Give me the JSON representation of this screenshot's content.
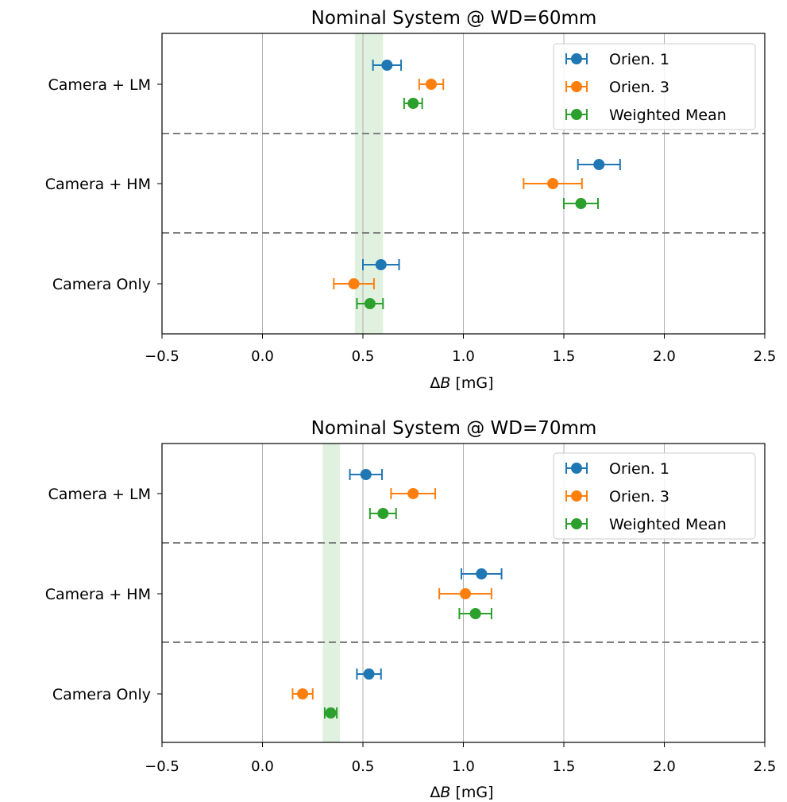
{
  "colors": {
    "orien1": "#1f77b4",
    "orien3": "#ff7f0e",
    "weighted_mean": "#2ca02c",
    "band": "#2ca02c",
    "grid": "#b0b0b0",
    "separator": "#808080"
  },
  "chart_data": [
    {
      "type": "scatter",
      "title": "Nominal System @ WD=60mm",
      "xlabel_delta": "Δ",
      "xlabel_var": "B",
      "xlabel_unit": " [mG]",
      "ylabel": "",
      "xlim": [
        -0.5,
        2.5
      ],
      "xticks": [
        -0.5,
        0.0,
        0.5,
        1.0,
        1.5,
        2.0,
        2.5
      ],
      "xtick_labels": [
        "−0.5",
        "0.0",
        "0.5",
        "1.0",
        "1.5",
        "2.0",
        "2.5"
      ],
      "grid": "vertical",
      "legend_position": "top-right",
      "categories": [
        "Camera + LM",
        "Camera + HM",
        "Camera Only"
      ],
      "band": [
        0.46,
        0.6
      ],
      "series": [
        {
          "name": "Orien. 1",
          "color": "orien1",
          "values": [
            0.62,
            1.675,
            0.59
          ],
          "errors": [
            0.07,
            0.105,
            0.09
          ]
        },
        {
          "name": "Orien. 3",
          "color": "orien3",
          "values": [
            0.84,
            1.445,
            0.455
          ],
          "errors": [
            0.06,
            0.145,
            0.1
          ]
        },
        {
          "name": "Weighted Mean",
          "color": "weighted_mean",
          "values": [
            0.75,
            1.585,
            0.535
          ],
          "errors": [
            0.045,
            0.085,
            0.065
          ]
        }
      ]
    },
    {
      "type": "scatter",
      "title": "Nominal System @ WD=70mm",
      "xlabel_delta": "Δ",
      "xlabel_var": "B",
      "xlabel_unit": " [mG]",
      "ylabel": "",
      "xlim": [
        -0.5,
        2.5
      ],
      "xticks": [
        -0.5,
        0.0,
        0.5,
        1.0,
        1.5,
        2.0,
        2.5
      ],
      "xtick_labels": [
        "−0.5",
        "0.0",
        "0.5",
        "1.0",
        "1.5",
        "2.0",
        "2.5"
      ],
      "grid": "vertical",
      "legend_position": "top-right",
      "categories": [
        "Camera + LM",
        "Camera + HM",
        "Camera Only"
      ],
      "band": [
        0.3,
        0.385
      ],
      "series": [
        {
          "name": "Orien. 1",
          "color": "orien1",
          "values": [
            0.515,
            1.09,
            0.53
          ],
          "errors": [
            0.08,
            0.1,
            0.06
          ]
        },
        {
          "name": "Orien. 3",
          "color": "orien3",
          "values": [
            0.75,
            1.01,
            0.2
          ],
          "errors": [
            0.11,
            0.13,
            0.05
          ]
        },
        {
          "name": "Weighted Mean",
          "color": "weighted_mean",
          "values": [
            0.6,
            1.06,
            0.34
          ],
          "errors": [
            0.065,
            0.08,
            0.03
          ]
        }
      ]
    }
  ]
}
